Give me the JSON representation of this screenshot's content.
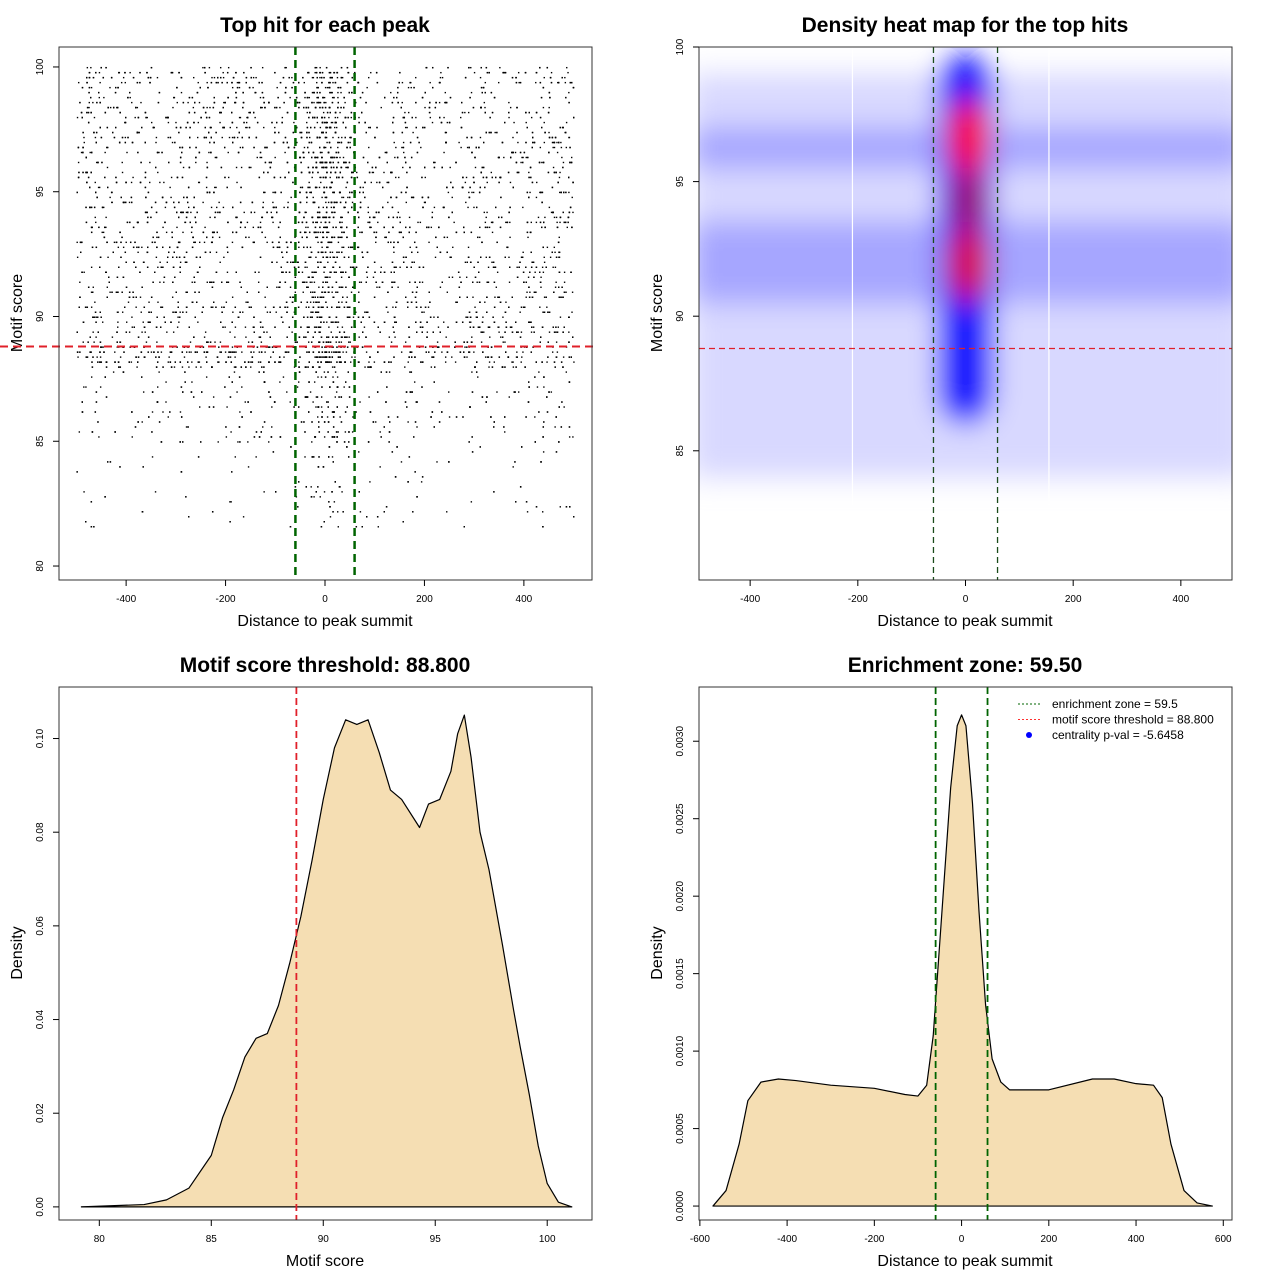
{
  "chart_data": [
    {
      "type": "scatter",
      "title": "Top hit for each peak",
      "xlabel": "Distance to peak summit",
      "ylabel": "Motif score",
      "xlim": [
        -535,
        537
      ],
      "ylim": [
        79.44,
        100.8
      ],
      "xticks": [
        -400,
        -200,
        0,
        200,
        400
      ],
      "yticks": [
        80,
        85,
        90,
        95,
        100
      ],
      "points_summary": {
        "n_approx": 7000,
        "x_range": [
          -500,
          500
        ],
        "y_range": [
          81.5,
          100
        ],
        "central_enrichment": [
          -59.5,
          59.5
        ]
      },
      "vlines": [
        -59.5,
        59.5
      ],
      "hline": 88.8,
      "vline_color": "#006400",
      "hline_color": "#e0202a"
    },
    {
      "type": "heatmap",
      "title": "Density heat map for the top hits",
      "xlabel": "Distance to peak summit",
      "ylabel": "Motif score",
      "xlim": [
        -495,
        495
      ],
      "ylim": [
        80.2,
        100
      ],
      "xticks": [
        -400,
        -200,
        0,
        200,
        400
      ],
      "yticks": [
        85,
        90,
        95,
        100
      ],
      "hotspots": [
        {
          "x": 5,
          "y": 96.6,
          "level": "high"
        },
        {
          "x": 5,
          "y": 92,
          "level": "high"
        }
      ],
      "vlines": [
        -59.5,
        59.5
      ],
      "hline": 88.8,
      "colors": [
        "#ffffff",
        "#0000ff",
        "#ff0000"
      ]
    },
    {
      "type": "area",
      "title": "Motif score threshold: 88.800",
      "xlabel": "Motif score",
      "ylabel": "Density",
      "xlim": [
        78.2,
        102
      ],
      "ylim": [
        -0.0028,
        0.111
      ],
      "xticks": [
        80,
        85,
        90,
        95,
        100
      ],
      "yticks": [
        0,
        0.02,
        0.04,
        0.06,
        0.08,
        0.1
      ],
      "ytick_labels": [
        "0.00",
        "0.02",
        "0.04",
        "0.06",
        "0.08",
        "0.10"
      ],
      "x": [
        79.2,
        82,
        83,
        84,
        85,
        85.5,
        86,
        86.5,
        87,
        87.5,
        88,
        88.5,
        89,
        89.5,
        90,
        90.5,
        91,
        91.5,
        92,
        92.5,
        93,
        93.5,
        94.3,
        94.7,
        95.2,
        95.7,
        96,
        96.3,
        96.6,
        97,
        97.4,
        98,
        98.5,
        98.8,
        99.2,
        99.6,
        100,
        100.5,
        101.1
      ],
      "y": [
        0,
        0.0005,
        0.0015,
        0.004,
        0.011,
        0.019,
        0.025,
        0.032,
        0.036,
        0.037,
        0.043,
        0.052,
        0.062,
        0.074,
        0.087,
        0.098,
        0.104,
        0.103,
        0.104,
        0.097,
        0.089,
        0.087,
        0.081,
        0.086,
        0.087,
        0.093,
        0.101,
        0.105,
        0.096,
        0.08,
        0.072,
        0.056,
        0.042,
        0.034,
        0.024,
        0.013,
        0.005,
        0.001,
        0
      ],
      "vline": 88.8,
      "fill": "#f5deb3",
      "vline_color": "#e0202a"
    },
    {
      "type": "area",
      "title": "Enrichment zone: 59.50",
      "xlabel": "Distance to peak summit",
      "ylabel": "Density",
      "xlim": [
        -602,
        620
      ],
      "ylim": [
        -9e-05,
        0.00335
      ],
      "xticks": [
        -600,
        -400,
        -200,
        0,
        200,
        400,
        600
      ],
      "yticks": [
        0,
        0.0005,
        0.001,
        0.0015,
        0.002,
        0.0025,
        0.003
      ],
      "ytick_labels": [
        "0.0000",
        "0.0005",
        "0.0010",
        "0.0015",
        "0.0020",
        "0.0025",
        "0.0030"
      ],
      "x": [
        -570,
        -540,
        -510,
        -490,
        -460,
        -420,
        -380,
        -300,
        -200,
        -130,
        -100,
        -80,
        -65,
        -55,
        -40,
        -25,
        -10,
        0,
        10,
        25,
        40,
        55,
        70,
        90,
        110,
        150,
        200,
        300,
        350,
        400,
        440,
        460,
        480,
        510,
        540,
        575
      ],
      "y": [
        0,
        0.0001,
        0.0004,
        0.00068,
        0.0008,
        0.00082,
        0.00081,
        0.00078,
        0.00076,
        0.00072,
        0.00071,
        0.00078,
        0.0011,
        0.0015,
        0.0021,
        0.0027,
        0.0031,
        0.00317,
        0.0031,
        0.0026,
        0.0019,
        0.0013,
        0.00095,
        0.0008,
        0.00075,
        0.00075,
        0.00075,
        0.00082,
        0.00082,
        0.00079,
        0.00078,
        0.0007,
        0.0004,
        0.0001,
        2e-05,
        0
      ],
      "vlines": [
        -59.5,
        59.5
      ],
      "fill": "#f5deb3",
      "vline_color": "#006400",
      "legend": {
        "position": "top-right",
        "items": [
          "enrichment zone = 59.5",
          "motif score threshold = 88.800",
          "centrality p-val = -5.6458"
        ],
        "colors": [
          "#006400",
          "#ff3030",
          "#0000ff"
        ]
      }
    }
  ]
}
